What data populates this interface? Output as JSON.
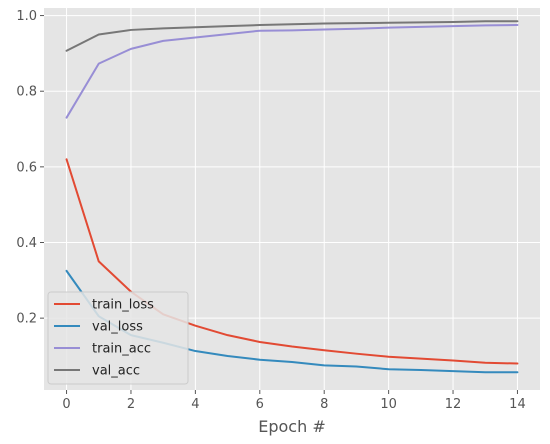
{
  "chart_data": {
    "type": "line",
    "title": "",
    "xlabel": "Epoch #",
    "ylabel": "",
    "xlim": [
      -0.7,
      14.7
    ],
    "ylim": [
      0.01,
      1.02
    ],
    "grid": true,
    "background": "#e5e5e5",
    "legend_position": "bottom-left",
    "x": [
      0,
      1,
      2,
      3,
      4,
      5,
      6,
      7,
      8,
      9,
      10,
      11,
      12,
      13,
      14
    ],
    "x_ticks": [
      0,
      2,
      4,
      6,
      8,
      10,
      12,
      14
    ],
    "x_tick_labels": [
      "0",
      "2",
      "4",
      "6",
      "8",
      "10",
      "12",
      "14"
    ],
    "y_ticks": [
      0.2,
      0.4,
      0.6,
      0.8,
      1.0
    ],
    "y_tick_labels": [
      "0.2",
      "0.4",
      "0.6",
      "0.8",
      "1.0"
    ],
    "series": [
      {
        "name": "train_loss",
        "color": "#e24a33",
        "values": [
          0.62,
          0.35,
          0.27,
          0.21,
          0.18,
          0.155,
          0.137,
          0.125,
          0.115,
          0.106,
          0.098,
          0.093,
          0.088,
          0.082,
          0.08
        ]
      },
      {
        "name": "val_loss",
        "color": "#348abd",
        "values": [
          0.325,
          0.205,
          0.155,
          0.135,
          0.113,
          0.1,
          0.09,
          0.084,
          0.075,
          0.072,
          0.065,
          0.063,
          0.06,
          0.057,
          0.057
        ]
      },
      {
        "name": "train_acc",
        "color": "#988ed5",
        "values": [
          0.73,
          0.873,
          0.912,
          0.933,
          0.942,
          0.951,
          0.96,
          0.961,
          0.963,
          0.965,
          0.968,
          0.97,
          0.972,
          0.974,
          0.975
        ]
      },
      {
        "name": "val_acc",
        "color": "#777777",
        "values": [
          0.907,
          0.95,
          0.962,
          0.966,
          0.969,
          0.972,
          0.975,
          0.977,
          0.979,
          0.98,
          0.981,
          0.982,
          0.983,
          0.985,
          0.985
        ]
      }
    ]
  }
}
